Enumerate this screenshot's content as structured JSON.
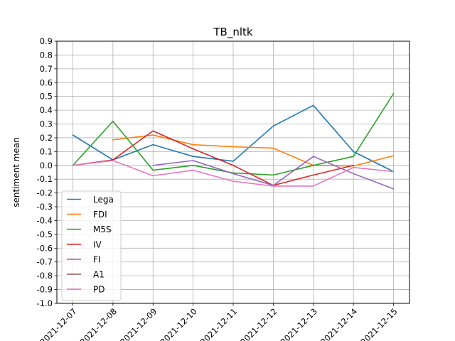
{
  "chart_data": {
    "type": "line",
    "title": "TB_nltk",
    "xlabel": "",
    "ylabel": "sentiment mean",
    "x": [
      "2021-12-07",
      "2021-12-08",
      "2021-12-09",
      "2021-12-10",
      "2021-12-11",
      "2021-12-12",
      "2021-12-13",
      "2021-12-14",
      "2021-12-15"
    ],
    "ylim": [
      -1.0,
      0.9
    ],
    "yticks": [
      -1.0,
      -0.9,
      -0.8,
      -0.7,
      -0.6,
      -0.5,
      -0.4,
      -0.3,
      -0.2,
      -0.1,
      0.0,
      0.1,
      0.2,
      0.3,
      0.4,
      0.5,
      0.6,
      0.7,
      0.8,
      0.9
    ],
    "grid": true,
    "legend_placement": "lower-left",
    "series": [
      {
        "name": "Lega",
        "color": "#1f77b4",
        "values": [
          0.22,
          0.04,
          0.15,
          0.065,
          0.03,
          0.285,
          0.435,
          0.1,
          -0.045
        ]
      },
      {
        "name": "FDI",
        "color": "#ff7f0e",
        "values": [
          null,
          0.185,
          0.22,
          0.15,
          0.135,
          0.125,
          0.0,
          -0.005,
          0.07
        ]
      },
      {
        "name": "M5S",
        "color": "#2ca02c",
        "values": [
          0.0,
          0.32,
          -0.035,
          0.0,
          -0.055,
          -0.07,
          0.0,
          0.065,
          0.52
        ]
      },
      {
        "name": "IV",
        "color": "#d62728",
        "values": [
          0.0,
          0.04,
          0.25,
          0.12,
          0.0,
          -0.145,
          -0.07,
          0.0,
          null
        ]
      },
      {
        "name": "FI",
        "color": "#9467bd",
        "values": [
          null,
          null,
          0.0,
          0.035,
          -0.06,
          -0.145,
          0.065,
          -0.06,
          -0.17
        ]
      },
      {
        "name": "A1",
        "color": "#8c564b",
        "values": [
          null,
          null,
          null,
          null,
          null,
          null,
          null,
          null,
          null
        ]
      },
      {
        "name": "PD",
        "color": "#e377c2",
        "values": [
          0.0,
          0.035,
          -0.075,
          -0.035,
          -0.115,
          -0.15,
          -0.15,
          -0.015,
          -0.045
        ]
      }
    ]
  }
}
